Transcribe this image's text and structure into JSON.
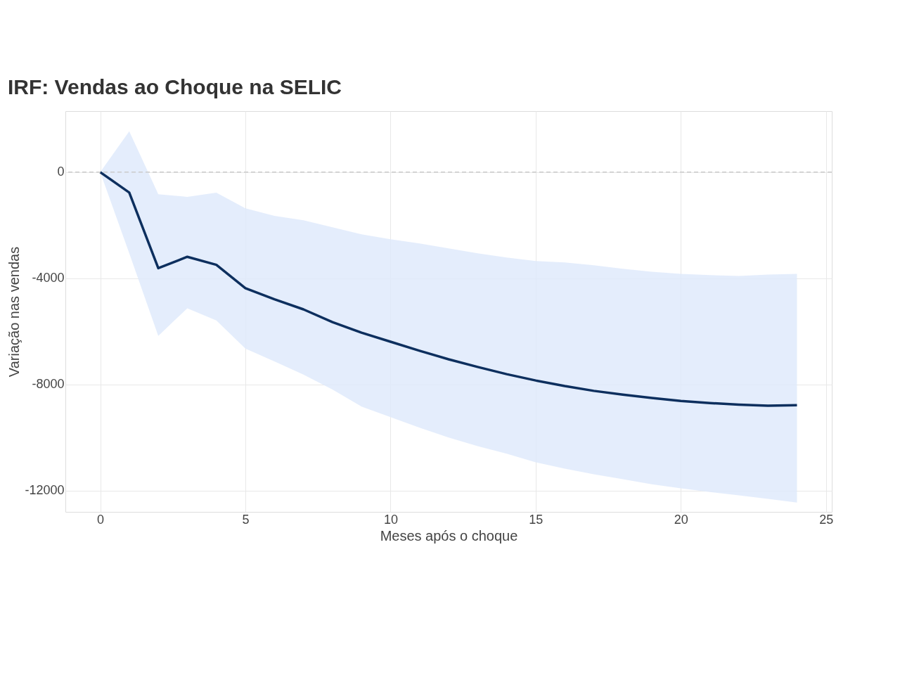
{
  "chart_data": {
    "type": "line",
    "title": "IRF: Vendas ao Choque na SELIC",
    "xlabel": "Meses após o choque",
    "ylabel": "Variação nas vendas",
    "x": [
      0,
      1,
      2,
      3,
      4,
      5,
      6,
      7,
      8,
      9,
      10,
      11,
      12,
      13,
      14,
      15,
      16,
      17,
      18,
      19,
      20,
      21,
      22,
      23,
      24
    ],
    "series": [
      {
        "color": "#0d2f5e",
        "values": [
          0,
          -770,
          -3620,
          -3190,
          -3490,
          -4370,
          -4790,
          -5170,
          -5650,
          -6050,
          -6390,
          -6730,
          -7050,
          -7340,
          -7610,
          -7850,
          -8060,
          -8240,
          -8380,
          -8510,
          -8620,
          -8700,
          -8760,
          -8800,
          -8780
        ],
        "upper": [
          0,
          1540,
          -830,
          -930,
          -770,
          -1360,
          -1650,
          -1810,
          -2080,
          -2340,
          -2530,
          -2690,
          -2870,
          -3060,
          -3220,
          -3350,
          -3400,
          -3510,
          -3640,
          -3750,
          -3830,
          -3880,
          -3910,
          -3860,
          -3830
        ],
        "lower": [
          0,
          -3060,
          -6170,
          -5130,
          -5590,
          -6650,
          -7130,
          -7630,
          -8190,
          -8830,
          -9230,
          -9630,
          -10000,
          -10320,
          -10610,
          -10930,
          -11170,
          -11380,
          -11570,
          -11760,
          -11910,
          -12050,
          -12180,
          -12310,
          -12450
        ]
      }
    ],
    "xlim": [
      -1.2,
      25.2
    ],
    "xticks": [
      0,
      5,
      10,
      15,
      20,
      25
    ],
    "ylim": [
      -12800,
      2300
    ],
    "yticks": [
      -12000,
      -8000,
      -4000,
      0
    ],
    "ref_lines": [
      {
        "axis": "y",
        "value": 0,
        "color": "#cccccc",
        "line_style": "dashed"
      }
    ],
    "grid": true,
    "marker": "none",
    "line_style": "solid"
  }
}
